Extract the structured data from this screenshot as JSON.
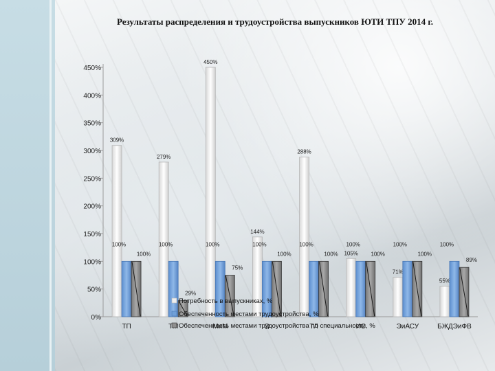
{
  "chart_data": {
    "type": "bar",
    "title": "Результаты распределения и трудоустройства выпускников  ЮТИ ТПУ 2014 г.",
    "xlabel": "",
    "ylabel": "",
    "ylim": [
      0,
      450
    ],
    "yticks": [
      "0%",
      "50%",
      "100%",
      "150%",
      "200%",
      "250%",
      "300%",
      "350%",
      "400%",
      "450%"
    ],
    "categories": [
      "ТП",
      "ТМ",
      "МиМ",
      "Э",
      "ТЛ",
      "ИС",
      "ЭиАСУ",
      "БЖДЭиФВ"
    ],
    "category_labels": [
      "ТП",
      "ТМ",
      "МиМ",
      "Э",
      "ТЛ",
      "ИС",
      "ЭиАСУ",
      "БЖДЭиФВ"
    ],
    "series": [
      {
        "name": "Потребность в выпускниках, %",
        "values": [
          309,
          279,
          450,
          144,
          288,
          105,
          71,
          55
        ],
        "labels": [
          "309%",
          "279%",
          "450%",
          "144%",
          "288%",
          "105%",
          "71%",
          "55%"
        ],
        "color": "#efefef"
      },
      {
        "name": "Обеспеченность местами трудоустройства, %",
        "values": [
          100,
          100,
          100,
          100,
          100,
          100,
          100,
          100
        ],
        "labels": [
          "100%",
          "100%",
          "100%",
          "100%",
          "100%",
          "100%",
          "100%",
          "100%"
        ],
        "color": "#6f9fd8"
      },
      {
        "name": "Обеспеченность местами трудоустройства по специальности, %",
        "values": [
          100,
          29,
          75,
          100,
          100,
          100,
          100,
          89
        ],
        "labels": [
          "100%",
          "29%",
          "75%",
          "100%",
          "100%",
          "100%",
          "100%",
          "89%"
        ],
        "color": "#8f8f8f"
      }
    ],
    "legend_position": "bottom-center",
    "grid": false
  }
}
